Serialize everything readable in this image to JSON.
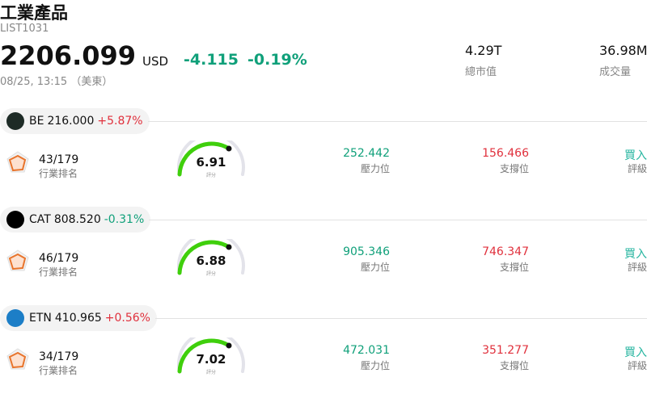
{
  "header": {
    "title": "工業產品",
    "code": "LIST1031",
    "price": "2206.099",
    "currency": "USD",
    "change": "-4.115",
    "change_pct": "-0.19%",
    "time": "08/25, 13:15 （美東）",
    "stats": [
      {
        "value": "4.29T",
        "label": "總市值"
      },
      {
        "value": "36.98M",
        "label": "成交量"
      }
    ]
  },
  "stocks": [
    {
      "ticker": "BE",
      "price": "216.000",
      "change": "+5.87%",
      "logo_color": "#1e2b26",
      "rank": "43/179",
      "rank_label": "行業排名",
      "score": "6.91",
      "score_label": "評分",
      "resistance": "252.442",
      "resistance_label": "壓力位",
      "support": "156.466",
      "support_label": "支撐位",
      "rating": "買入",
      "rating_label": "評級"
    },
    {
      "ticker": "CAT",
      "price": "808.520",
      "change": "-0.31%",
      "logo_color": "#000000",
      "rank": "46/179",
      "rank_label": "行業排名",
      "score": "6.88",
      "score_label": "評分",
      "resistance": "905.346",
      "resistance_label": "壓力位",
      "support": "746.347",
      "support_label": "支撐位",
      "rating": "買入",
      "rating_label": "評級"
    },
    {
      "ticker": "ETN",
      "price": "410.965",
      "change": "+0.56%",
      "logo_color": "#1c7ec7",
      "rank": "34/179",
      "rank_label": "行業排名",
      "score": "7.02",
      "score_label": "評分",
      "resistance": "472.031",
      "resistance_label": "壓力位",
      "support": "351.277",
      "support_label": "支撐位",
      "rating": "買入",
      "rating_label": "評級"
    }
  ]
}
